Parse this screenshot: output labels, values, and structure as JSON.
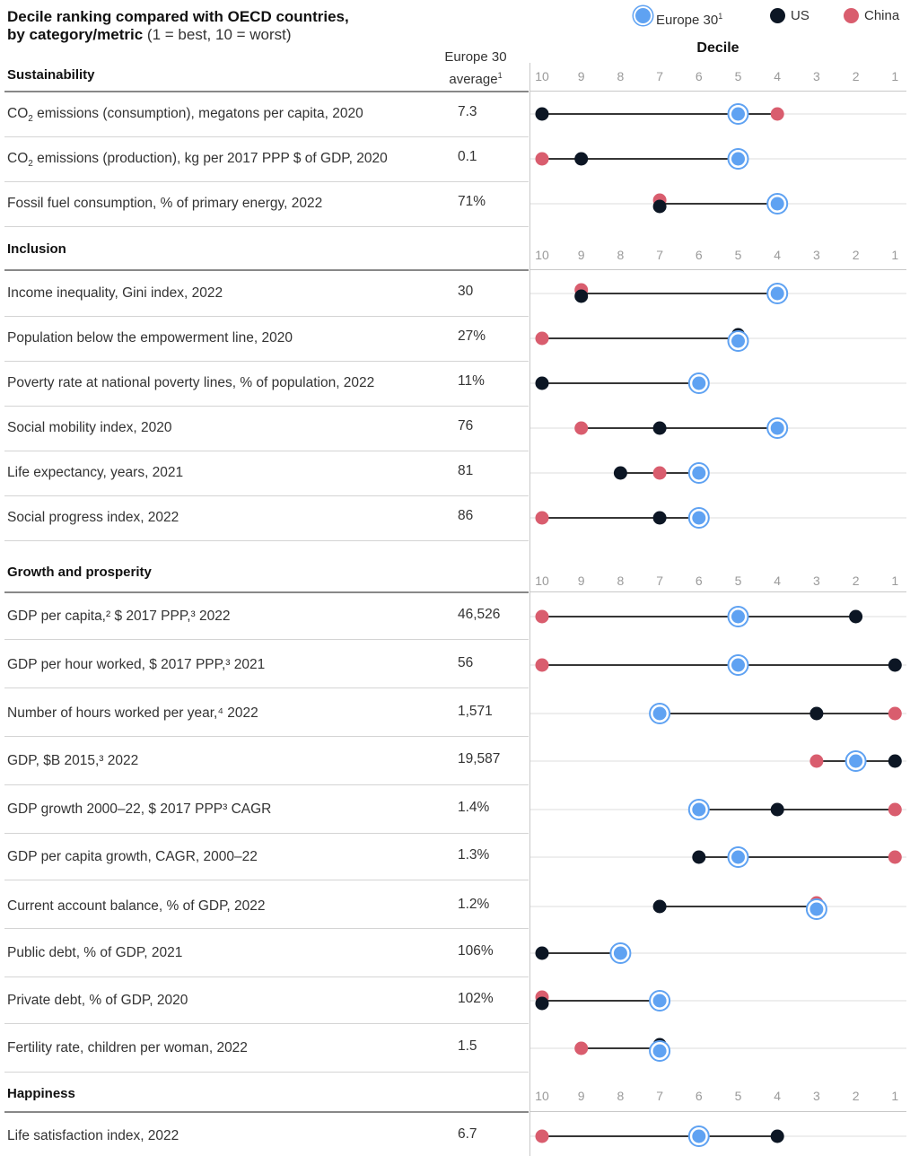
{
  "title": {
    "bold": "Decile ranking compared with OECD countries,",
    "bold2": "by category/metric",
    "light": "(1 = best, 10 = worst)"
  },
  "legend": [
    {
      "name": "Europe 30",
      "sup": "1",
      "color": "#5fa2f2",
      "style": "ring"
    },
    {
      "name": "US",
      "sup": "",
      "color": "#0c1624",
      "style": "solid"
    },
    {
      "name": "China",
      "sup": "",
      "color": "#d95d6e",
      "style": "solid"
    }
  ],
  "decile_title": "Decile",
  "avg_header": {
    "line1": "Europe 30",
    "line2": "average",
    "sup": "1"
  },
  "chart_data": {
    "type": "scatter",
    "xlabel": "Decile",
    "x_ticks": [
      10,
      9,
      8,
      7,
      6,
      5,
      4,
      3,
      2,
      1
    ],
    "series_names": [
      "Europe 30",
      "US",
      "China"
    ],
    "sections": [
      {
        "name": "Sustainability",
        "rows": [
          {
            "label": "CO₂ emissions (consumption), megatons per capita, 2020",
            "avg": "7.3",
            "europe": 5,
            "us": 10,
            "china": 4
          },
          {
            "label": "CO₂ emissions (production), kg per 2017 PPP $ of GDP, 2020",
            "avg": "0.1",
            "europe": 5,
            "us": 9,
            "china": 10
          },
          {
            "label": "Fossil fuel consumption, % of primary energy, 2022",
            "avg": "71%",
            "europe": 4,
            "us": 7,
            "china": 7
          }
        ]
      },
      {
        "name": "Inclusion",
        "rows": [
          {
            "label": "Income inequality, Gini index, 2022",
            "avg": "30",
            "europe": 4,
            "us": 9,
            "china": 9
          },
          {
            "label": "Population below the empowerment line, 2020",
            "avg": "27%",
            "europe": 5,
            "us": 5,
            "china": 10
          },
          {
            "label": "Poverty rate at national poverty lines, % of population, 2022",
            "avg": "11%",
            "europe": 6,
            "us": 10,
            "china": null
          },
          {
            "label": "Social mobility index, 2020",
            "avg": "76",
            "europe": 4,
            "us": 7,
            "china": 9
          },
          {
            "label": "Life expectancy, years, 2021",
            "avg": "81",
            "europe": 6,
            "us": 8,
            "china": 7
          },
          {
            "label": "Social progress index, 2022",
            "avg": "86",
            "europe": 6,
            "us": 7,
            "china": 10
          }
        ]
      },
      {
        "name": "Growth and prosperity",
        "rows": [
          {
            "label": "GDP per capita,² $ 2017 PPP,³ 2022",
            "avg": "46,526",
            "europe": 5,
            "us": 2,
            "china": 10
          },
          {
            "label": "GDP per hour worked, $ 2017  PPP,³ 2021",
            "avg": "56",
            "europe": 5,
            "us": 1,
            "china": 10
          },
          {
            "label": "Number of hours worked per year,⁴ 2022",
            "avg": "1,571",
            "europe": 7,
            "us": 3,
            "china": 1
          },
          {
            "label": "GDP, $B 2015,³ 2022",
            "avg": "19,587",
            "europe": 2,
            "us": 1,
            "china": 3
          },
          {
            "label": "GDP growth 2000–22, $ 2017 PPP³ CAGR",
            "avg": "1.4%",
            "europe": 6,
            "us": 4,
            "china": 1
          },
          {
            "label": "GDP per capita growth, CAGR, 2000–22",
            "avg": "1.3%",
            "europe": 5,
            "us": 6,
            "china": 1
          },
          {
            "label": "Current account balance, % of GDP, 2022",
            "avg": "1.2%",
            "europe": 3,
            "us": 7,
            "china": 3
          },
          {
            "label": "Public debt, % of GDP, 2021",
            "avg": "106%",
            "europe": 8,
            "us": 10,
            "china": null
          },
          {
            "label": "Private debt, % of GDP, 2020",
            "avg": "102%",
            "europe": 7,
            "us": 10,
            "china": 10
          },
          {
            "label": "Fertility rate, children per woman, 2022",
            "avg": "1.5",
            "europe": 7,
            "us": 7,
            "china": 9
          }
        ]
      },
      {
        "name": "Happiness",
        "rows": [
          {
            "label": "Life satisfaction index, 2022",
            "avg": "6.7",
            "europe": 6,
            "us": 4,
            "china": 10
          }
        ]
      }
    ]
  }
}
